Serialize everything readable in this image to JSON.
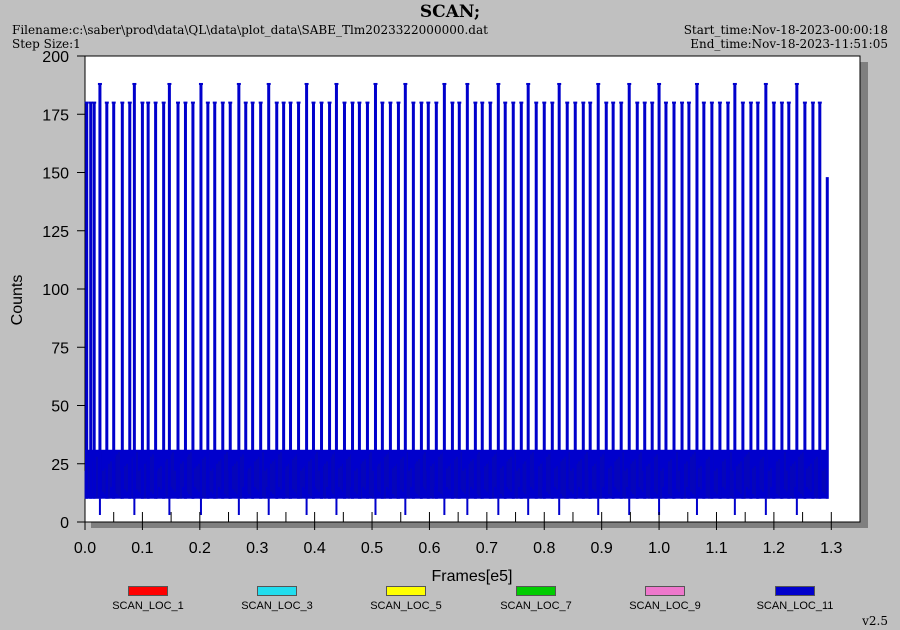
{
  "header": {
    "title": "SCAN;",
    "filename": "Filename:c:\\saber\\prod\\data\\QL\\data\\plot_data\\SABE_Tlm2023322000000.dat",
    "step_size": "Step Size:1",
    "start_time": "Start_time:Nov-18-2023-00:00:18",
    "end_time": "End_time:Nov-18-2023-11:51:05"
  },
  "version": "v2.5",
  "colors": {
    "background": "#c0c0c0",
    "plot_bg": "#ffffff",
    "shadow": "#7f7f7f",
    "main_series": "#0000cc"
  },
  "chart_data": {
    "type": "line",
    "title": "SCAN;",
    "xlabel": "Frames[e5]",
    "ylabel": "Counts",
    "xlim": [
      0.0,
      1.35
    ],
    "ylim": [
      0,
      200
    ],
    "x_ticks": [
      "0.0",
      "0.1",
      "0.2",
      "0.3",
      "0.4",
      "0.5",
      "0.6",
      "0.7",
      "0.8",
      "0.9",
      "1.0",
      "1.1",
      "1.2",
      "1.3"
    ],
    "y_ticks": [
      "0",
      "25",
      "50",
      "75",
      "100",
      "125",
      "150",
      "175",
      "200"
    ],
    "legend_position": "bottom",
    "series": [
      {
        "name": "SCAN_LOC_1",
        "color": "#ff0000"
      },
      {
        "name": "SCAN_LOC_3",
        "color": "#22ddee"
      },
      {
        "name": "SCAN_LOC_5",
        "color": "#ffff00"
      },
      {
        "name": "SCAN_LOC_7",
        "color": "#00cc00"
      },
      {
        "name": "SCAN_LOC_9",
        "color": "#ee77cc"
      },
      {
        "name": "SCAN_LOC_11",
        "color": "#0000cc"
      }
    ],
    "baseline_band": [
      10,
      31
    ],
    "spike_cap": 180,
    "tall_spike_cap": 188,
    "bottom_dips": 3,
    "last_spike": {
      "x": 1.293,
      "y": 148
    },
    "data_end_x": 1.295,
    "spikes_x": [
      0.003,
      0.01,
      0.016,
      0.026,
      0.038,
      0.05,
      0.065,
      0.078,
      0.086,
      0.1,
      0.11,
      0.123,
      0.137,
      0.147,
      0.162,
      0.175,
      0.188,
      0.202,
      0.214,
      0.226,
      0.24,
      0.253,
      0.268,
      0.28,
      0.292,
      0.306,
      0.32,
      0.334,
      0.346,
      0.358,
      0.372,
      0.386,
      0.398,
      0.412,
      0.426,
      0.438,
      0.452,
      0.466,
      0.478,
      0.492,
      0.506,
      0.518,
      0.532,
      0.546,
      0.558,
      0.572,
      0.586,
      0.598,
      0.612,
      0.626,
      0.64,
      0.652,
      0.666,
      0.68,
      0.692,
      0.706,
      0.72,
      0.732,
      0.746,
      0.76,
      0.772,
      0.786,
      0.8,
      0.814,
      0.826,
      0.84,
      0.854,
      0.868,
      0.88,
      0.894,
      0.908,
      0.92,
      0.934,
      0.948,
      0.962,
      0.975,
      0.988,
      1.0,
      1.012,
      1.026,
      1.04,
      1.052,
      1.066,
      1.078,
      1.092,
      1.106,
      1.12,
      1.132,
      1.146,
      1.16,
      1.172,
      1.186,
      1.2,
      1.214,
      1.226,
      1.24,
      1.254,
      1.268,
      1.28
    ],
    "tall_spikes_x": [
      0.026,
      0.086,
      0.147,
      0.202,
      0.268,
      0.32,
      0.386,
      0.438,
      0.506,
      0.558,
      0.626,
      0.666,
      0.72,
      0.772,
      0.826,
      0.894,
      0.948,
      1.0,
      1.066,
      1.132,
      1.186,
      1.24
    ]
  }
}
